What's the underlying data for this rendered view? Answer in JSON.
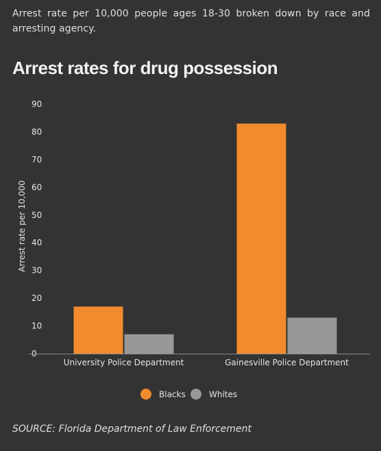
{
  "subtitle": "Arrest rate per 10,000 people ages 18-30 broken down by race and arresting agency.",
  "source": "SOURCE: Florida Department of Law Enforcement",
  "colors": {
    "background": "#333333",
    "blacks": "#f28b2e",
    "whites": "#989898",
    "text": "#e6e6e6"
  },
  "chart_data": {
    "type": "bar",
    "title": "Arrest rates for drug possession",
    "xlabel": "",
    "ylabel": "Arrest rate per 10,000",
    "ylim": [
      0,
      90
    ],
    "yticks": [
      "0",
      "10",
      "20",
      "30",
      "40",
      "50",
      "60",
      "70",
      "80",
      "90"
    ],
    "categories": [
      "University Police Department",
      "Gainesville Police Department"
    ],
    "series": [
      {
        "name": "Blacks",
        "color": "#f28b2e",
        "values": [
          17,
          83
        ]
      },
      {
        "name": "Whites",
        "color": "#989898",
        "values": [
          7,
          13
        ]
      }
    ],
    "legend_position": "bottom-center",
    "grid": false
  }
}
